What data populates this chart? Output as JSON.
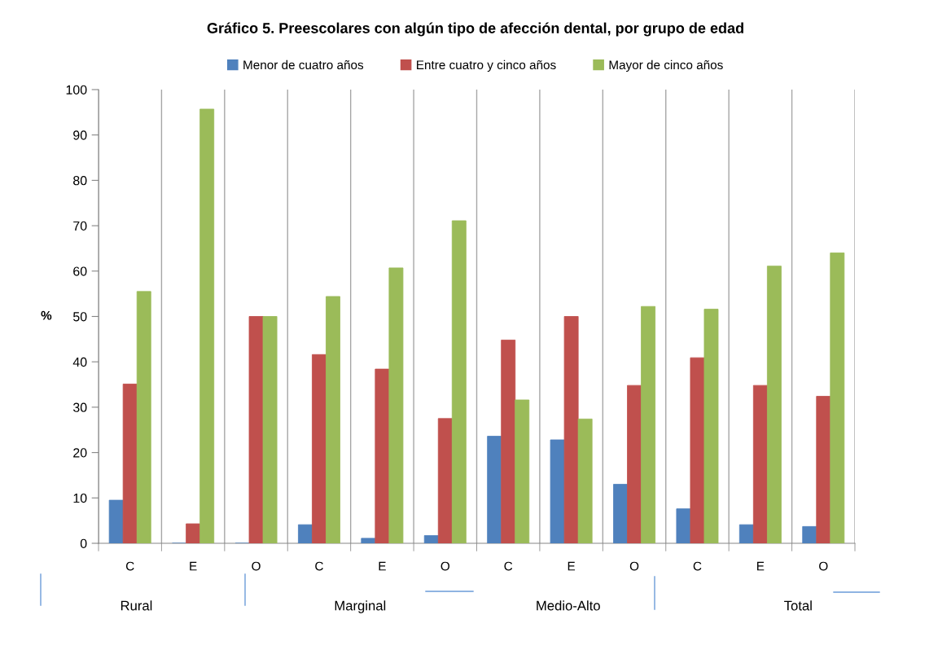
{
  "chart_data": {
    "type": "bar",
    "title": "Gráfico 5. Preescolares con algún tipo de afección dental, por grupo de edad",
    "ylabel": "%",
    "categories": [
      "C",
      "E",
      "O",
      "C",
      "E",
      "O",
      "C",
      "E",
      "O",
      "C",
      "E",
      "O"
    ],
    "series": [
      {
        "name": "Menor de cuatro años",
        "color": "#4f81bd",
        "values": [
          9.5,
          0,
          0,
          4.1,
          1.1,
          1.7,
          23.6,
          22.8,
          13.0,
          7.6,
          4.1,
          3.7
        ]
      },
      {
        "name": "Entre cuatro y cinco años",
        "color": "#c0504d",
        "values": [
          35.1,
          4.3,
          50.0,
          41.6,
          38.4,
          27.5,
          44.8,
          50.0,
          34.8,
          40.9,
          34.8,
          32.4
        ]
      },
      {
        "name": "Mayor de cinco años",
        "color": "#9bbb59",
        "values": [
          55.5,
          95.7,
          50.0,
          54.4,
          60.7,
          71.1,
          31.6,
          27.4,
          52.2,
          51.6,
          61.1,
          64.0
        ]
      }
    ],
    "ylim": [
      0,
      100
    ],
    "yticks": [
      0,
      10,
      20,
      30,
      40,
      50,
      60,
      70,
      80,
      90,
      100
    ],
    "grid": "x",
    "legend": "top",
    "annotations": [
      "Rural",
      "Marginal",
      "Medio-Alto",
      "Total"
    ]
  }
}
